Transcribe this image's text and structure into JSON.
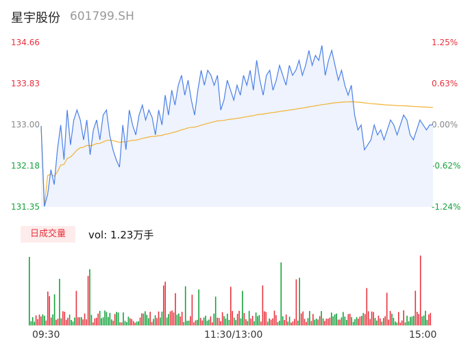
{
  "header": {
    "name": "星宇股份",
    "code": "601799.SH"
  },
  "price_axis": [
    "134.66",
    "133.83",
    "133.00",
    "132.18",
    "131.35"
  ],
  "pct_axis": [
    "1.25%",
    "0.63%",
    "0.00%",
    "-0.62%",
    "-1.24%"
  ],
  "volume_panel": {
    "label": "日成交量",
    "vol_prefix": "vol: ",
    "vol_value": "1.23万手"
  },
  "time_axis": [
    "09:30",
    "11:30/13:00",
    "15:00"
  ],
  "colors": {
    "price": "#4a7fe6",
    "avg": "#f2b233",
    "up": "#e8303c",
    "down": "#13a13a",
    "area": "#eef3fd"
  },
  "chart_data": {
    "type": "line",
    "x_range": [
      0,
      240
    ],
    "ylim": [
      131.35,
      134.66
    ],
    "prev_close": 133.0,
    "price_series_points": [
      [
        0,
        132.98
      ],
      [
        2,
        131.36
      ],
      [
        4,
        131.6
      ],
      [
        6,
        132.1
      ],
      [
        8,
        131.8
      ],
      [
        10,
        132.5
      ],
      [
        12,
        133.0
      ],
      [
        14,
        132.3
      ],
      [
        16,
        133.3
      ],
      [
        18,
        132.6
      ],
      [
        20,
        133.1
      ],
      [
        22,
        133.3
      ],
      [
        24,
        133.1
      ],
      [
        26,
        132.7
      ],
      [
        28,
        133.1
      ],
      [
        30,
        132.4
      ],
      [
        32,
        132.9
      ],
      [
        34,
        133.1
      ],
      [
        36,
        132.7
      ],
      [
        38,
        133.2
      ],
      [
        40,
        133.3
      ],
      [
        42,
        132.8
      ],
      [
        44,
        132.5
      ],
      [
        46,
        132.3
      ],
      [
        48,
        132.15
      ],
      [
        50,
        133.0
      ],
      [
        52,
        132.5
      ],
      [
        54,
        133.3
      ],
      [
        56,
        133.0
      ],
      [
        58,
        132.8
      ],
      [
        60,
        133.2
      ],
      [
        62,
        133.4
      ],
      [
        64,
        133.1
      ],
      [
        66,
        133.3
      ],
      [
        68,
        133.15
      ],
      [
        70,
        132.8
      ],
      [
        72,
        133.3
      ],
      [
        74,
        133.0
      ],
      [
        76,
        133.6
      ],
      [
        78,
        133.2
      ],
      [
        80,
        133.7
      ],
      [
        82,
        133.4
      ],
      [
        84,
        133.8
      ],
      [
        86,
        134.0
      ],
      [
        88,
        133.6
      ],
      [
        90,
        133.9
      ],
      [
        92,
        133.5
      ],
      [
        94,
        133.2
      ],
      [
        96,
        133.7
      ],
      [
        98,
        134.1
      ],
      [
        100,
        133.8
      ],
      [
        102,
        134.1
      ],
      [
        104,
        134.0
      ],
      [
        106,
        133.8
      ],
      [
        108,
        134.0
      ],
      [
        110,
        133.3
      ],
      [
        112,
        133.5
      ],
      [
        114,
        133.9
      ],
      [
        116,
        133.7
      ],
      [
        118,
        133.5
      ],
      [
        120,
        133.8
      ],
      [
        122,
        133.6
      ],
      [
        124,
        134.0
      ],
      [
        126,
        133.8
      ],
      [
        128,
        134.1
      ],
      [
        130,
        133.7
      ],
      [
        132,
        134.3
      ],
      [
        134,
        133.9
      ],
      [
        136,
        133.6
      ],
      [
        138,
        134.0
      ],
      [
        140,
        134.1
      ],
      [
        142,
        133.7
      ],
      [
        144,
        133.9
      ],
      [
        146,
        134.2
      ],
      [
        148,
        134.0
      ],
      [
        150,
        133.8
      ],
      [
        152,
        134.2
      ],
      [
        154,
        134.0
      ],
      [
        156,
        134.1
      ],
      [
        158,
        134.3
      ],
      [
        160,
        134.0
      ],
      [
        162,
        134.2
      ],
      [
        164,
        134.5
      ],
      [
        166,
        134.2
      ],
      [
        168,
        134.4
      ],
      [
        170,
        134.3
      ],
      [
        172,
        134.6
      ],
      [
        174,
        134.0
      ],
      [
        176,
        134.3
      ],
      [
        178,
        134.5
      ],
      [
        180,
        134.2
      ],
      [
        182,
        133.9
      ],
      [
        184,
        134.1
      ],
      [
        186,
        133.8
      ],
      [
        188,
        133.6
      ],
      [
        190,
        133.8
      ],
      [
        192,
        133.2
      ],
      [
        194,
        132.9
      ],
      [
        196,
        133.0
      ],
      [
        198,
        132.5
      ],
      [
        200,
        132.6
      ],
      [
        202,
        132.7
      ],
      [
        204,
        133.0
      ],
      [
        206,
        132.8
      ],
      [
        208,
        132.9
      ],
      [
        210,
        132.7
      ],
      [
        212,
        132.9
      ],
      [
        214,
        133.1
      ],
      [
        216,
        133.0
      ],
      [
        218,
        132.8
      ],
      [
        220,
        133.0
      ],
      [
        222,
        133.2
      ],
      [
        224,
        133.1
      ],
      [
        226,
        132.8
      ],
      [
        228,
        132.7
      ],
      [
        230,
        132.9
      ],
      [
        232,
        133.1
      ],
      [
        234,
        133.0
      ],
      [
        236,
        132.9
      ],
      [
        238,
        133.0
      ],
      [
        240,
        133.0
      ]
    ]
  }
}
